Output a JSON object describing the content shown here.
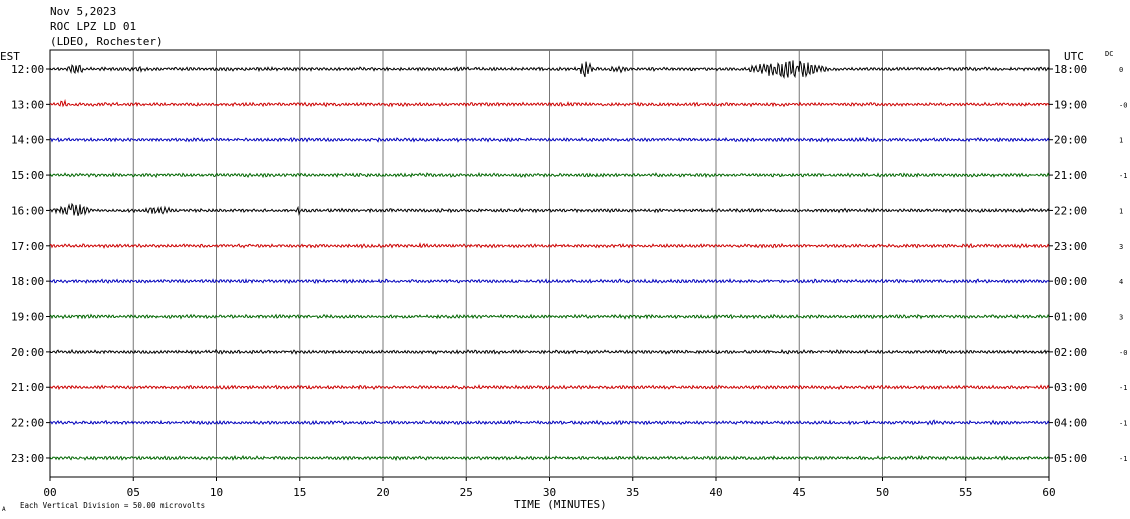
{
  "header": {
    "date": "Nov 5,2023",
    "station": "ROC LPZ LD 01",
    "network": "(LDEO, Rochester)"
  },
  "labels": {
    "left_tz": "EST",
    "right_tz": "UTC",
    "dc": "DC",
    "xlabel": "TIME (MINUTES)",
    "scale_note": "Each Vertical Division =   50.00 microvolts",
    "corner_mark": "A"
  },
  "chart_data": {
    "type": "line",
    "title": "",
    "xlabel": "TIME (MINUTES)",
    "xlim": [
      0,
      60
    ],
    "xticks": [
      "00",
      "05",
      "10",
      "15",
      "20",
      "25",
      "30",
      "35",
      "40",
      "45",
      "50",
      "55",
      "60"
    ],
    "grid": true,
    "colors": [
      "#000000",
      "#cc0000",
      "#0000bb",
      "#006600"
    ],
    "rows": [
      {
        "est": "12:00",
        "utc": "18:00",
        "dc": "0",
        "events": [
          {
            "t": 1,
            "amp": 5,
            "len": 2
          },
          {
            "t": 5.2,
            "amp": 4,
            "len": 1
          },
          {
            "t": 31.8,
            "amp": 9,
            "len": 1.4
          },
          {
            "t": 33.5,
            "amp": 4,
            "len": 2
          },
          {
            "t": 42,
            "amp": 9,
            "len": 8
          }
        ]
      },
      {
        "est": "13:00",
        "utc": "19:00",
        "dc": "-0",
        "events": [
          {
            "t": 0.5,
            "amp": 4,
            "len": 1
          },
          {
            "t": 31,
            "amp": 4,
            "len": 1
          }
        ]
      },
      {
        "est": "14:00",
        "utc": "20:00",
        "dc": "1",
        "events": []
      },
      {
        "est": "15:00",
        "utc": "21:00",
        "dc": "-1",
        "events": []
      },
      {
        "est": "16:00",
        "utc": "22:00",
        "dc": "1",
        "events": [
          {
            "t": 0.2,
            "amp": 7,
            "len": 4
          },
          {
            "t": 5.5,
            "amp": 4,
            "len": 4
          },
          {
            "t": 14.8,
            "amp": 4,
            "len": 0.6
          }
        ]
      },
      {
        "est": "17:00",
        "utc": "23:00",
        "dc": "3",
        "events": []
      },
      {
        "est": "18:00",
        "utc": "00:00",
        "dc": "4",
        "events": []
      },
      {
        "est": "19:00",
        "utc": "01:00",
        "dc": "3",
        "events": []
      },
      {
        "est": "20:00",
        "utc": "02:00",
        "dc": "-0",
        "events": []
      },
      {
        "est": "21:00",
        "utc": "03:00",
        "dc": "-1",
        "events": []
      },
      {
        "est": "22:00",
        "utc": "04:00",
        "dc": "-1",
        "events": [
          {
            "t": 52.8,
            "amp": 3,
            "len": 0.8
          }
        ]
      },
      {
        "est": "23:00",
        "utc": "05:00",
        "dc": "-1",
        "events": []
      }
    ]
  }
}
